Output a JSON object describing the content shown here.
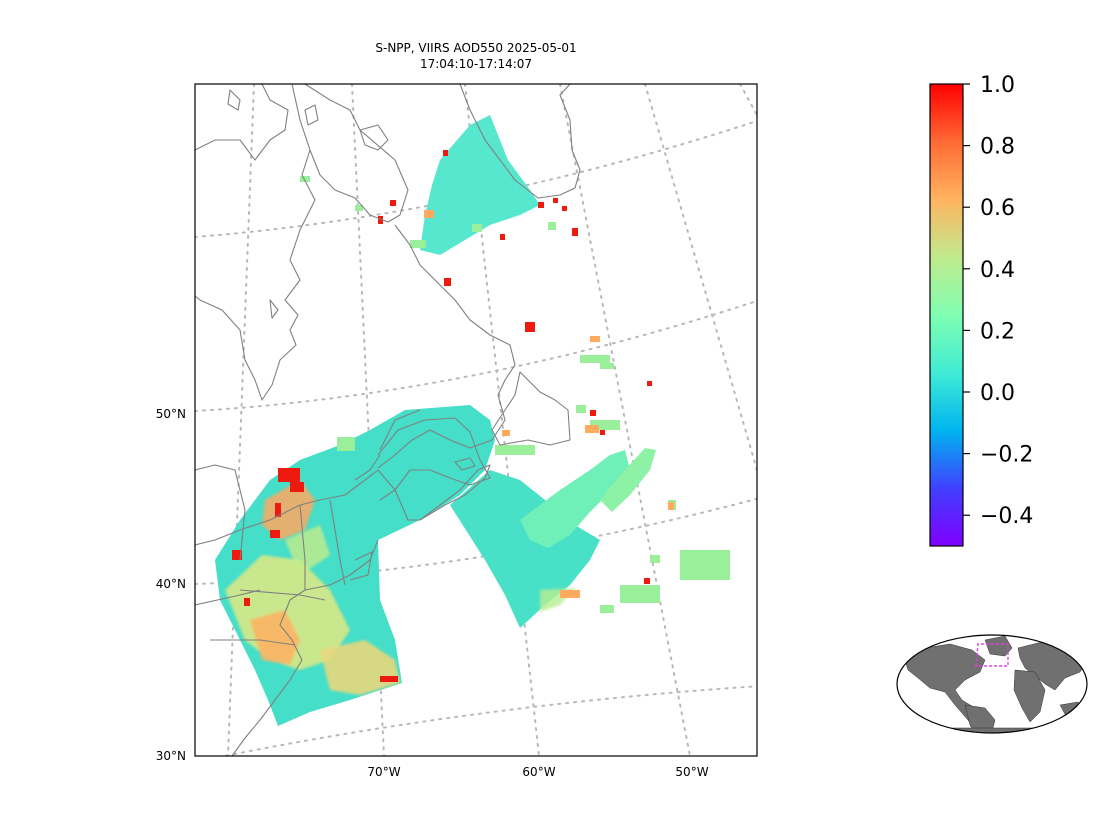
{
  "title": {
    "line1": "S-NPP, VIIRS AOD550 2025-05-01",
    "line2": "17:04:10-17:14:07"
  },
  "map": {
    "projection": "conic",
    "extent": {
      "lon": [
        -80,
        -45
      ],
      "lat": [
        30,
        63
      ]
    },
    "lat_ticks": [
      {
        "value": 30,
        "label": "30°N"
      },
      {
        "value": 40,
        "label": "40°N"
      },
      {
        "value": 50,
        "label": "50°N"
      }
    ],
    "lon_ticks": [
      {
        "value": -70,
        "label": "70°W"
      },
      {
        "value": -60,
        "label": "60°W"
      },
      {
        "value": -50,
        "label": "50°W"
      }
    ],
    "gridlines": "dotted",
    "coastline_color": "#808080"
  },
  "colorbar": {
    "colormap": "rainbow",
    "min": -0.5,
    "max": 1.0,
    "ticks": [
      {
        "value": 1.0,
        "label": "1.0"
      },
      {
        "value": 0.8,
        "label": "0.8"
      },
      {
        "value": 0.6,
        "label": "0.6"
      },
      {
        "value": 0.4,
        "label": "0.4"
      },
      {
        "value": 0.2,
        "label": "0.2"
      },
      {
        "value": 0.0,
        "label": "0.0"
      },
      {
        "value": -0.2,
        "label": "−0.2"
      },
      {
        "value": -0.4,
        "label": "−0.4"
      }
    ]
  },
  "inset": {
    "type": "global-locator",
    "land_color": "#707070",
    "box_color": "#e040e0"
  }
}
